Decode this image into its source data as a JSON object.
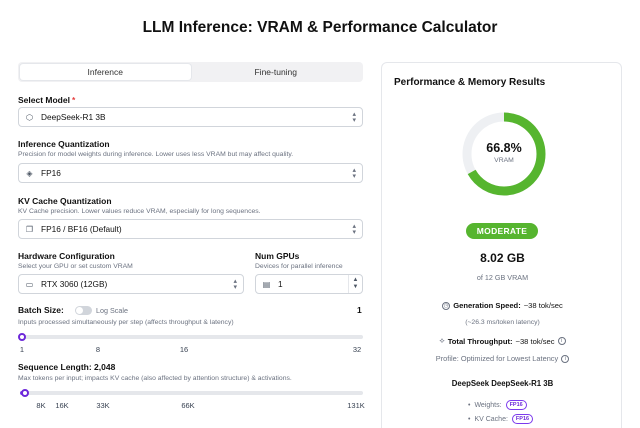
{
  "title": "LLM Inference: VRAM & Performance Calculator",
  "tabs": [
    {
      "label": "Inference",
      "active": true
    },
    {
      "label": "Fine-tuning",
      "active": false
    }
  ],
  "model": {
    "label": "Select Model",
    "required_mark": "*",
    "value": "DeepSeek-R1 3B",
    "icon": "cube-icon"
  },
  "inference_quant": {
    "label": "Inference Quantization",
    "help": "Precision for model weights during inference. Lower uses less VRAM but may affect quality.",
    "value": "FP16",
    "icon": "chip-icon"
  },
  "kv_quant": {
    "label": "KV Cache Quantization",
    "help": "KV Cache precision. Lower values reduce VRAM, especially for long sequences.",
    "value": "FP16 / BF16 (Default)",
    "icon": "layers-icon"
  },
  "hardware": {
    "label": "Hardware Configuration",
    "help": "Select your GPU or set custom VRAM",
    "value": "RTX 3060 (12GB)",
    "icon": "monitor-icon"
  },
  "num_gpus": {
    "label": "Num GPUs",
    "help": "Devices for parallel inference",
    "value": "1",
    "icon": "gpu-icon"
  },
  "batch": {
    "label": "Batch Size:",
    "log_scale_label": "Log Scale",
    "log_scale_on": false,
    "value": "1",
    "help": "Inputs processed simultaneously per step (affects throughput & latency)",
    "ticks": [
      "1",
      "8",
      "16",
      "32"
    ],
    "fraction": 0.0
  },
  "sequence": {
    "label": "Sequence Length: 2,048",
    "help": "Max tokens per input; impacts KV cache (also affected by attention structure) & activations.",
    "ticks": [
      "8K",
      "16K",
      "33K",
      "66K",
      "131K"
    ],
    "fraction": 0.016
  },
  "results": {
    "title": "Performance & Memory Results",
    "percent": "66.8%",
    "percent_value": 0.668,
    "gauge_label": "VRAM",
    "status": "MODERATE",
    "status_color": "#56b52f",
    "vram_used": "8.02 GB",
    "vram_total": "of 12 GB VRAM",
    "generation_speed_label": "Generation Speed:",
    "generation_speed_value": "~38 tok/sec",
    "latency": "(~26.3 ms/token latency)",
    "total_throughput_label": "Total Throughput:",
    "total_throughput_value": "~38 tok/sec",
    "profile": "Profile: Optimized for Lowest Latency",
    "model_line": "DeepSeek DeepSeek-R1 3B",
    "weights_label": "Weights:",
    "weights_tag": "FP16",
    "kv_label": "KV Cache:",
    "kv_tag": "FP16"
  }
}
